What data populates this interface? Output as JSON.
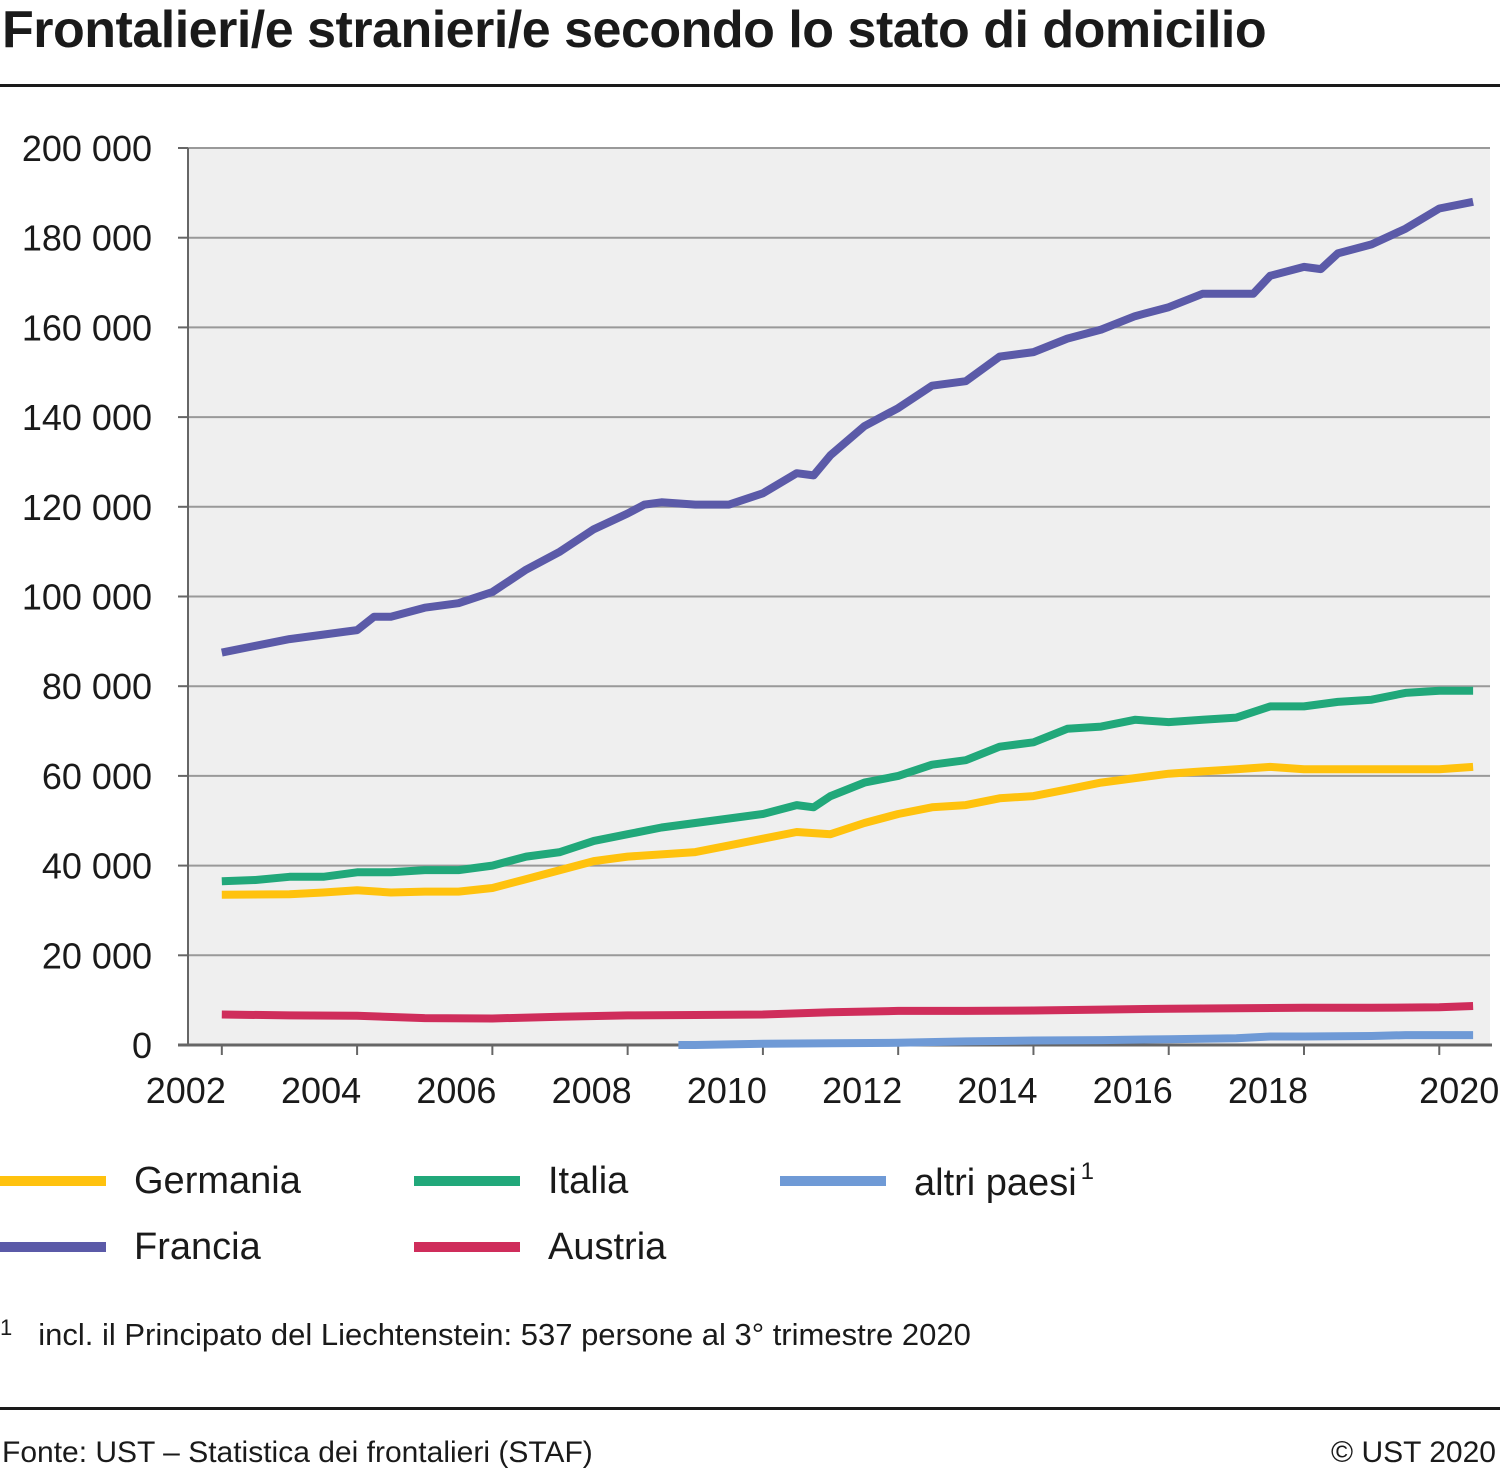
{
  "title": "Frontalieri/e stranieri/e secondo lo stato di domicilio",
  "footnote": {
    "marker": "1",
    "text": "incl. il Principato del Liechtenstein: 537 persone al 3° trimestre 2020"
  },
  "source": "Fonte: UST – Statistica dei frontalieri (STAF)",
  "copyright": "© UST 2020",
  "chart_data": {
    "type": "line",
    "title": "Frontalieri/e stranieri/e secondo lo stato di domicilio",
    "xlabel": "",
    "ylabel": "",
    "xlim": [
      2001.5,
      2020.75
    ],
    "ylim": [
      0,
      200000
    ],
    "grid": true,
    "legend_position": "bottom",
    "x_ticks": [
      2002,
      2004,
      2006,
      2008,
      2010,
      2012,
      2014,
      2016,
      2018,
      2020
    ],
    "x_tick_labels": [
      "2002",
      "2004",
      "2006",
      "2008",
      "2010",
      "2012",
      "2014",
      "2016",
      "2018",
      "2020"
    ],
    "y_ticks": [
      0,
      20000,
      40000,
      60000,
      80000,
      100000,
      120000,
      140000,
      160000,
      180000,
      200000
    ],
    "y_tick_labels": [
      "0",
      "20 000",
      "40 000",
      "60 000",
      "80 000",
      "100 000",
      "120 000",
      "140 000",
      "160 000",
      "180 000",
      "200 000"
    ],
    "series": [
      {
        "name": "Germania",
        "sup": "",
        "color": "#ffc20e",
        "x": [
          2002.0,
          2003.0,
          2003.5,
          2004.0,
          2004.5,
          2005.0,
          2005.5,
          2006.0,
          2006.5,
          2007.0,
          2007.5,
          2008.0,
          2008.5,
          2009.0,
          2009.5,
          2010.0,
          2010.5,
          2011.0,
          2011.5,
          2012.0,
          2012.5,
          2013.0,
          2013.5,
          2014.0,
          2014.5,
          2015.0,
          2015.5,
          2016.0,
          2016.5,
          2017.0,
          2017.5,
          2018.0,
          2018.5,
          2019.0,
          2019.5,
          2020.0,
          2020.5
        ],
        "values": [
          33500,
          33600,
          34000,
          34500,
          34000,
          34200,
          34200,
          35000,
          37000,
          39000,
          41000,
          42000,
          42500,
          43000,
          44500,
          46000,
          47500,
          47000,
          49500,
          51500,
          53000,
          53500,
          55000,
          55500,
          57000,
          58500,
          59500,
          60500,
          61000,
          61500,
          62000,
          61500,
          61500,
          61500,
          61500,
          61500,
          62000
        ]
      },
      {
        "name": "Francia",
        "sup": "",
        "color": "#5b5aa8",
        "x": [
          2002.0,
          2002.5,
          2003.0,
          2003.5,
          2004.0,
          2004.25,
          2004.5,
          2005.0,
          2005.5,
          2006.0,
          2006.5,
          2007.0,
          2007.5,
          2008.0,
          2008.25,
          2008.5,
          2009.0,
          2009.5,
          2010.0,
          2010.5,
          2010.75,
          2011.0,
          2011.5,
          2012.0,
          2012.5,
          2013.0,
          2013.5,
          2014.0,
          2014.5,
          2015.0,
          2015.5,
          2016.0,
          2016.5,
          2017.0,
          2017.25,
          2017.5,
          2018.0,
          2018.25,
          2018.5,
          2019.0,
          2019.5,
          2020.0,
          2020.5
        ],
        "values": [
          87500,
          89000,
          90500,
          91500,
          92500,
          95500,
          95500,
          97500,
          98500,
          101000,
          106000,
          110000,
          115000,
          118500,
          120500,
          121000,
          120500,
          120500,
          123000,
          127500,
          127000,
          131500,
          138000,
          142000,
          147000,
          148000,
          153500,
          154500,
          157500,
          159500,
          162500,
          164500,
          167500,
          167500,
          167500,
          171500,
          173500,
          173000,
          176500,
          178500,
          182000,
          186500,
          188000
        ]
      },
      {
        "name": "Italia",
        "sup": "",
        "color": "#21a87a",
        "x": [
          2002.0,
          2002.5,
          2003.0,
          2003.5,
          2004.0,
          2004.5,
          2005.0,
          2005.5,
          2006.0,
          2006.5,
          2007.0,
          2007.5,
          2008.0,
          2008.5,
          2009.0,
          2009.5,
          2010.0,
          2010.5,
          2010.75,
          2011.0,
          2011.5,
          2012.0,
          2012.5,
          2013.0,
          2013.5,
          2014.0,
          2014.5,
          2015.0,
          2015.5,
          2016.0,
          2016.5,
          2017.0,
          2017.5,
          2018.0,
          2018.5,
          2019.0,
          2019.5,
          2020.0,
          2020.5
        ],
        "values": [
          36500,
          36800,
          37500,
          37500,
          38500,
          38500,
          39000,
          39000,
          40000,
          42000,
          43000,
          45500,
          47000,
          48500,
          49500,
          50500,
          51500,
          53500,
          53000,
          55500,
          58500,
          60000,
          62500,
          63500,
          66500,
          67500,
          70500,
          71000,
          72500,
          72000,
          72500,
          73000,
          75500,
          75500,
          76500,
          77000,
          78500,
          79000,
          79000
        ]
      },
      {
        "name": "Austria",
        "sup": "",
        "color": "#cf2d5b",
        "x": [
          2002.0,
          2003.0,
          2004.0,
          2005.0,
          2006.0,
          2007.0,
          2008.0,
          2009.0,
          2010.0,
          2011.0,
          2012.0,
          2013.0,
          2014.0,
          2015.0,
          2016.0,
          2017.0,
          2018.0,
          2019.0,
          2020.0,
          2020.5
        ],
        "values": [
          6800,
          6600,
          6500,
          6000,
          5900,
          6300,
          6600,
          6700,
          6800,
          7300,
          7600,
          7600,
          7700,
          7900,
          8100,
          8200,
          8300,
          8300,
          8400,
          8700
        ]
      },
      {
        "name": "altri paesi",
        "sup": "1",
        "color": "#6f9ad6",
        "x": [
          2008.75,
          2009.0,
          2010.0,
          2011.0,
          2012.0,
          2013.0,
          2014.0,
          2015.0,
          2016.0,
          2017.0,
          2017.5,
          2018.0,
          2019.0,
          2019.5,
          2020.0,
          2020.5
        ],
        "values": [
          0,
          0,
          300,
          400,
          500,
          800,
          1000,
          1100,
          1300,
          1500,
          1900,
          1900,
          2000,
          2200,
          2200,
          2200
        ]
      }
    ]
  },
  "legend_rows": [
    [
      {
        "ref": 0
      },
      {
        "ref": 2
      },
      {
        "ref": 4
      }
    ],
    [
      {
        "ref": 1
      },
      {
        "ref": 3
      }
    ]
  ]
}
